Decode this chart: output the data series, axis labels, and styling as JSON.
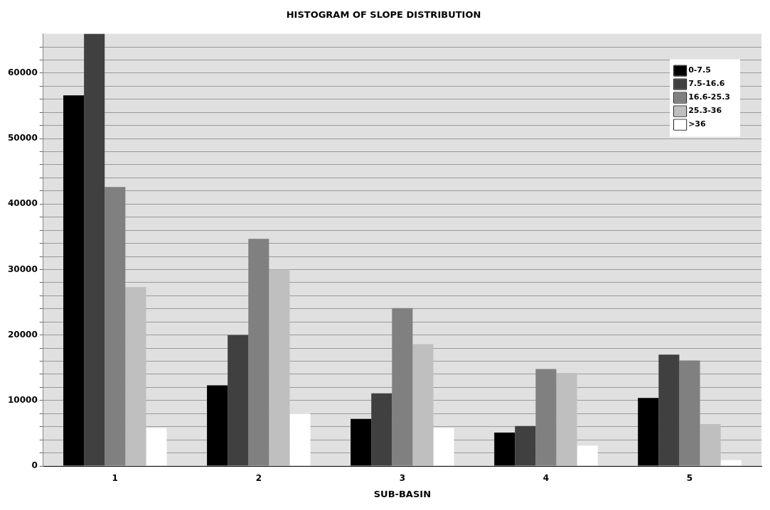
{
  "chart_data": {
    "type": "bar",
    "title": "HISTOGRAM OF SLOPE DISTRIBUTION",
    "xlabel": "SUB-BASIN",
    "categories": [
      "1",
      "2",
      "3",
      "4",
      "5"
    ],
    "series": [
      {
        "name": "0-7.5",
        "color": "#000000",
        "values": [
          56600,
          12300,
          7200,
          5100,
          10400
        ]
      },
      {
        "name": "7.5-16.6",
        "color": "#404040",
        "values": [
          66000,
          20000,
          11100,
          6100,
          17000
        ]
      },
      {
        "name": "16.6-25.3",
        "color": "#808080",
        "values": [
          42600,
          34700,
          24100,
          14800,
          16100
        ]
      },
      {
        "name": "25.3-36",
        "color": "#bfbfbf",
        "values": [
          27300,
          30000,
          18600,
          14200,
          6400
        ]
      },
      {
        "name": ">36",
        "color": "#ffffff",
        "values": [
          5800,
          8000,
          5800,
          3100,
          900
        ]
      }
    ],
    "ylim": [
      0,
      66000
    ],
    "yticks": [
      0,
      {
        "value": 2000,
        "label": null
      },
      {
        "value": 4000,
        "label": null
      },
      {
        "value": 6000,
        "label": null
      },
      {
        "value": 8000,
        "label": null
      },
      10000,
      {
        "value": 12000,
        "label": null
      },
      {
        "value": 14000,
        "label": null
      },
      {
        "value": 16000,
        "label": null
      },
      {
        "value": 18000,
        "label": null
      },
      20000,
      {
        "value": 22000,
        "label": null
      },
      {
        "value": 24000,
        "label": null
      },
      {
        "value": 26000,
        "label": null
      },
      {
        "value": 28000,
        "label": null
      },
      30000,
      {
        "value": 32000,
        "label": null
      },
      {
        "value": 34000,
        "label": null
      },
      {
        "value": 36000,
        "label": null
      },
      {
        "value": 38000,
        "label": null
      },
      40000,
      {
        "value": 42000,
        "label": null
      },
      {
        "value": 44000,
        "label": null
      },
      {
        "value": 46000,
        "label": null
      },
      {
        "value": 48000,
        "label": null
      },
      50000,
      {
        "value": 52000,
        "label": null
      },
      {
        "value": 54000,
        "label": null
      },
      {
        "value": 56000,
        "label": null
      },
      {
        "value": 58000,
        "label": null
      },
      60000,
      {
        "value": 62000,
        "label": null
      },
      {
        "value": 64000,
        "label": null
      }
    ],
    "grid": "y",
    "legend": "top right"
  }
}
